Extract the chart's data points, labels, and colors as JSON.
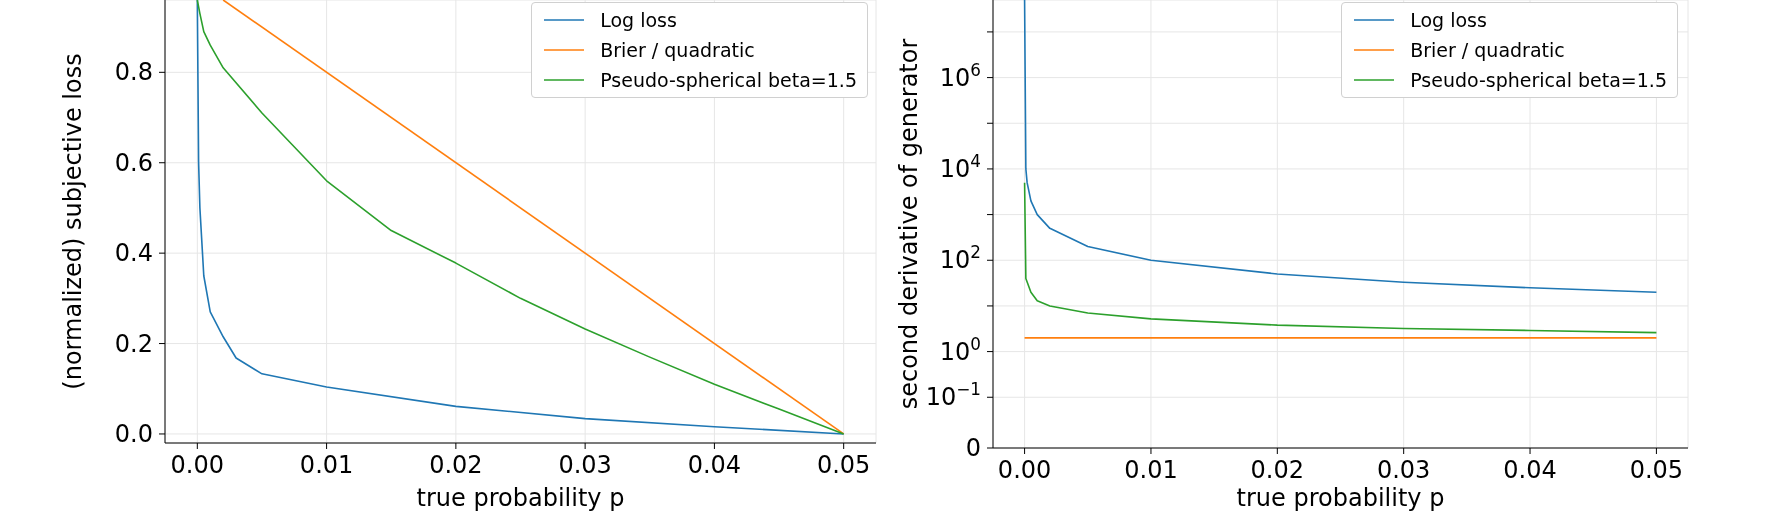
{
  "chart_data": [
    {
      "type": "line",
      "xlabel": "true probability p",
      "ylabel": "(normalized) subjective loss",
      "xlim": [
        -0.0025,
        0.0525
      ],
      "ylim": [
        -0.02,
        0.96
      ],
      "xticks": [
        {
          "value": 0,
          "label": "0.00"
        },
        {
          "value": 0.01,
          "label": "0.01"
        },
        {
          "value": 0.02,
          "label": "0.02"
        },
        {
          "value": 0.03,
          "label": "0.03"
        },
        {
          "value": 0.04,
          "label": "0.04"
        },
        {
          "value": 0.05,
          "label": "0.05"
        }
      ],
      "yticks": [
        {
          "value": 0,
          "label": "0.0"
        },
        {
          "value": 0.2,
          "label": "0.2"
        },
        {
          "value": 0.4,
          "label": "0.4"
        },
        {
          "value": 0.6,
          "label": "0.6"
        },
        {
          "value": 0.8,
          "label": "0.8"
        }
      ],
      "grid": true,
      "legend": "top right",
      "series": [
        {
          "name": "Log loss",
          "color": "#1f77b4",
          "x": [
            0,
            0.0001,
            0.0002,
            0.0005,
            0.001,
            0.002,
            0.003,
            0.005,
            0.01,
            0.02,
            0.03,
            0.04,
            0.05
          ],
          "values": [
            0.96,
            0.6,
            0.5,
            0.35,
            0.27,
            0.215,
            0.168,
            0.133,
            0.104,
            0.061,
            0.034,
            0.016,
            0
          ]
        },
        {
          "name": "Brier / quadratic",
          "color": "#ff7f0e",
          "x": [
            0.002,
            0.05
          ],
          "values": [
            0.96,
            0
          ]
        },
        {
          "name": "Pseudo-spherical beta=1.5",
          "color": "#2ca02c",
          "x": [
            0,
            0.0002,
            0.0005,
            0.001,
            0.002,
            0.005,
            0.01,
            0.015,
            0.02,
            0.025,
            0.03,
            0.035,
            0.04,
            0.045,
            0.05
          ],
          "values": [
            0.96,
            0.93,
            0.89,
            0.86,
            0.81,
            0.71,
            0.56,
            0.45,
            0.378,
            0.3,
            0.232,
            0.17,
            0.11,
            0.055,
            0
          ]
        }
      ]
    },
    {
      "type": "line",
      "xlabel": "true probability p",
      "ylabel": "second derivative of generator",
      "xlim": [
        -0.0025,
        0.0525
      ],
      "ylim": [
        0,
        50000000
      ],
      "log": "y",
      "xticks": [
        {
          "value": 0,
          "label": "0.00"
        },
        {
          "value": 0.01,
          "label": "0.01"
        },
        {
          "value": 0.02,
          "label": "0.02"
        },
        {
          "value": 0.03,
          "label": "0.03"
        },
        {
          "value": 0.04,
          "label": "0.04"
        },
        {
          "value": 0.05,
          "label": "0.05"
        }
      ],
      "yticks": [
        0,
        {
          "value": 0.1,
          "label": "10$^{−1}$"
        },
        {
          "value": 1,
          "label": "10$^{0}$"
        },
        {
          "value": 10,
          "label": null
        },
        {
          "value": 100,
          "label": "10$^{2}$"
        },
        {
          "value": 1000,
          "label": null
        },
        {
          "value": 10000,
          "label": "10$^{4}$"
        },
        {
          "value": 100000,
          "label": null
        },
        {
          "value": 1000000,
          "label": "10$^{6}$"
        },
        {
          "value": 10000000,
          "label": null
        }
      ],
      "grid": true,
      "legend": "top right",
      "series": [
        {
          "name": "Log loss",
          "color": "#1f77b4",
          "x": [
            0,
            0.0001,
            0.0002,
            0.0005,
            0.001,
            0.002,
            0.005,
            0.01,
            0.02,
            0.03,
            0.04,
            0.05
          ],
          "values": [
            50000000,
            10000,
            5000,
            2000,
            1000,
            500,
            200,
            100,
            50,
            33,
            25,
            20
          ]
        },
        {
          "name": "Brier / quadratic",
          "color": "#ff7f0e",
          "x": [
            0,
            0.05
          ],
          "values": [
            2,
            2
          ]
        },
        {
          "name": "Pseudo-spherical beta=1.5",
          "color": "#2ca02c",
          "x": [
            0,
            0.0001,
            0.0005,
            0.001,
            0.002,
            0.005,
            0.01,
            0.02,
            0.03,
            0.04,
            0.05
          ],
          "values": [
            5000,
            40,
            20,
            13,
            10,
            7,
            5.2,
            3.8,
            3.2,
            2.9,
            2.6
          ]
        }
      ]
    }
  ]
}
